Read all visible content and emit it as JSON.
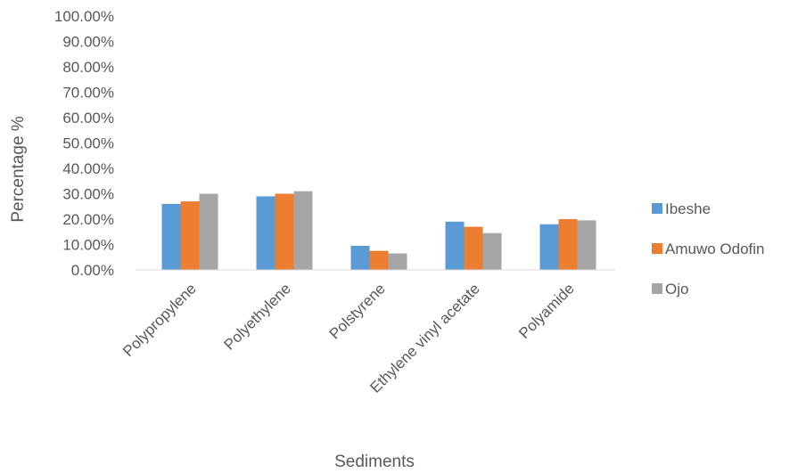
{
  "chart_data": {
    "type": "bar",
    "title": "",
    "xlabel": "Sediments",
    "ylabel": "Percentage %",
    "ylim": [
      0,
      1
    ],
    "yticks": [
      "0.00%",
      "10.00%",
      "20.00%",
      "30.00%",
      "40.00%",
      "50.00%",
      "60.00%",
      "70.00%",
      "80.00%",
      "90.00%",
      "100.00%"
    ],
    "categories": [
      "Polypropylene",
      "Polyethylene",
      "Polstyrene",
      "Ethylene vinyl acetate",
      "Polyamide"
    ],
    "series": [
      {
        "name": "Ibeshe",
        "color": "#5B9BD5",
        "values": [
          0.26,
          0.29,
          0.095,
          0.19,
          0.18
        ]
      },
      {
        "name": "Amuwo Odofin",
        "color": "#ED7D31",
        "values": [
          0.27,
          0.3,
          0.075,
          0.17,
          0.2
        ]
      },
      {
        "name": "Ojo",
        "color": "#A5A5A5",
        "values": [
          0.3,
          0.31,
          0.065,
          0.145,
          0.195
        ]
      }
    ],
    "grid": false,
    "legend_position": "right"
  }
}
